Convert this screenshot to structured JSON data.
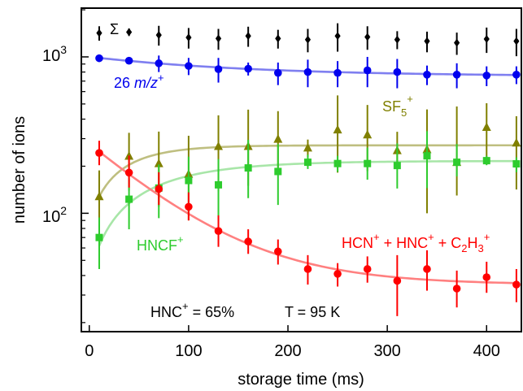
{
  "chart_data": {
    "type": "scatter",
    "xlabel": "storage time (ms)",
    "ylabel": "number of ions",
    "xlim": [
      -8,
      435
    ],
    "ylim": [
      17.5,
      2050
    ],
    "yscale": "log",
    "grid": false,
    "x_ticks": [
      0,
      100,
      200,
      300,
      400
    ],
    "x_tick_labels": [
      "0",
      "100",
      "200",
      "300",
      "400"
    ],
    "y_major_ticks": [
      100,
      1000
    ],
    "y_minor_ticks": [
      20,
      30,
      40,
      50,
      60,
      70,
      80,
      90,
      200,
      300,
      400,
      500,
      600,
      700,
      800,
      900,
      2000
    ],
    "y_tick_labels": {
      "base": "10",
      "exponents": [
        "2",
        "3"
      ]
    },
    "series": [
      {
        "name": "Σ",
        "color": "#000000",
        "marker": "diamond",
        "x": [
          10,
          40,
          70,
          100,
          130,
          160,
          190,
          220,
          250,
          280,
          310,
          340,
          370,
          400,
          430
        ],
        "y": [
          1420,
          1440,
          1380,
          1330,
          1310,
          1360,
          1310,
          1290,
          1360,
          1340,
          1290,
          1260,
          1230,
          1300,
          1260
        ],
        "err": [
          [
            150,
            150
          ],
          [
            80,
            80
          ],
          [
            200,
            200
          ],
          [
            200,
            200
          ],
          [
            200,
            200
          ],
          [
            200,
            200
          ],
          [
            180,
            180
          ],
          [
            220,
            220
          ],
          [
            280,
            280
          ],
          [
            230,
            230
          ],
          [
            170,
            170
          ],
          [
            190,
            190
          ],
          [
            200,
            200
          ],
          [
            240,
            240
          ],
          [
            250,
            250
          ]
        ]
      },
      {
        "name": "26 m/z+",
        "color": "#0000ee",
        "fit_color": "#7f7ff0",
        "marker": "circle",
        "x": [
          10,
          40,
          70,
          100,
          130,
          160,
          190,
          220,
          250,
          280,
          310,
          340,
          370,
          400,
          430
        ],
        "y": [
          980,
          945,
          910,
          875,
          835,
          840,
          790,
          800,
          790,
          820,
          800,
          770,
          770,
          760,
          770
        ],
        "err": [
          [
            30,
            30
          ],
          [
            30,
            30
          ],
          [
            110,
            110
          ],
          [
            110,
            110
          ],
          [
            150,
            150
          ],
          [
            80,
            80
          ],
          [
            130,
            130
          ],
          [
            160,
            160
          ],
          [
            150,
            150
          ],
          [
            180,
            180
          ],
          [
            170,
            170
          ],
          [
            110,
            110
          ],
          [
            140,
            140
          ],
          [
            110,
            110
          ],
          [
            100,
            100
          ]
        ],
        "fit": {
          "x": [
            10,
            430
          ],
          "y0": 985,
          "yinf": 752,
          "tau_ms": 150
        }
      },
      {
        "name": "SF5+",
        "color": "#808000",
        "fit_color": "#bfbf80",
        "marker": "triangle",
        "x": [
          10,
          40,
          70,
          100,
          130,
          160,
          190,
          220,
          250,
          280,
          310,
          340,
          370,
          400,
          430
        ],
        "y": [
          128,
          232,
          208,
          178,
          268,
          268,
          298,
          262,
          342,
          318,
          252,
          256,
          212,
          355,
          282
        ],
        "err": [
          [
            58,
            60
          ],
          [
            92,
            95
          ],
          [
            98,
            125
          ],
          [
            88,
            135
          ],
          [
            130,
            155
          ],
          [
            118,
            192
          ],
          [
            122,
            152
          ],
          [
            32,
            34
          ],
          [
            160,
            225
          ],
          [
            132,
            175
          ],
          [
            60,
            80
          ],
          [
            156,
            205
          ],
          [
            82,
            270
          ],
          [
            128,
            150
          ],
          [
            140,
            135
          ]
        ],
        "fit": {
          "x": [
            10,
            430
          ],
          "y0": 128,
          "yinf": 272,
          "tau_ms": 40
        }
      },
      {
        "name": "HNCF+",
        "color": "#2ecc2e",
        "fit_color": "#a8e6a8",
        "marker": "square",
        "x": [
          10,
          40,
          70,
          100,
          130,
          160,
          190,
          220,
          250,
          280,
          310,
          340,
          370,
          400,
          430
        ],
        "y": [
          70,
          123,
          145,
          162,
          152,
          195,
          185,
          212,
          208,
          208,
          202,
          233,
          212,
          217,
          207
        ],
        "err": [
          [
            26,
            24
          ],
          [
            44,
            42
          ],
          [
            52,
            60
          ],
          [
            62,
            68
          ],
          [
            62,
            70
          ],
          [
            70,
            100
          ],
          [
            72,
            92
          ],
          [
            20,
            25
          ],
          [
            24,
            25
          ],
          [
            44,
            55
          ],
          [
            58,
            78
          ],
          [
            88,
            102
          ],
          [
            40,
            65
          ],
          [
            14,
            16
          ],
          [
            24,
            21
          ]
        ],
        "fit": {
          "x": [
            10,
            430
          ],
          "y0": 62,
          "yinf": 216,
          "tau_ms": 70
        }
      },
      {
        "name": "HCN+ + HNC+ + C2H3+",
        "color": "#ff0000",
        "fit_color": "#ff8080",
        "marker": "circle",
        "x": [
          10,
          40,
          70,
          100,
          130,
          160,
          190,
          220,
          250,
          280,
          310,
          340,
          370,
          400,
          430
        ],
        "y": [
          243,
          182,
          143,
          110,
          77,
          66,
          57,
          44,
          41,
          44,
          37,
          44,
          33,
          39,
          35
        ],
        "err": [
          [
            40,
            48
          ],
          [
            36,
            52
          ],
          [
            30,
            40
          ],
          [
            20,
            26
          ],
          [
            16,
            20
          ],
          [
            11,
            13
          ],
          [
            10,
            11
          ],
          [
            9,
            10
          ],
          [
            7,
            7
          ],
          [
            8,
            9
          ],
          [
            15,
            17
          ],
          [
            12,
            14
          ],
          [
            8,
            10
          ],
          [
            8,
            10
          ],
          [
            8,
            9
          ]
        ],
        "fit": {
          "x": [
            10,
            430
          ],
          "y0": 248,
          "yinf": 35,
          "tau_ms": 75
        }
      }
    ],
    "annotations": {
      "sigma": "Σ",
      "mz_pre": "26 ",
      "mz_italic": "m/z",
      "mz_sup": "+",
      "sf5_base": "SF",
      "sf5_sub": "5",
      "sf5_sup": "+",
      "hncf_base": "HNCF",
      "hncf_sup": "+",
      "red_p1": "HCN",
      "red_p1_sup": "+",
      "red_p2": " + HNC",
      "red_p2_sup": "+",
      "red_p3": " + C",
      "red_p3_sub1": "2",
      "red_p3_mid": "H",
      "red_p3_sub2": "3",
      "red_p3_sup": "+",
      "hnc_base": "HNC",
      "hnc_sup": "+",
      "hnc_value": " = 65%",
      "temperature": "T = 95 K"
    }
  }
}
